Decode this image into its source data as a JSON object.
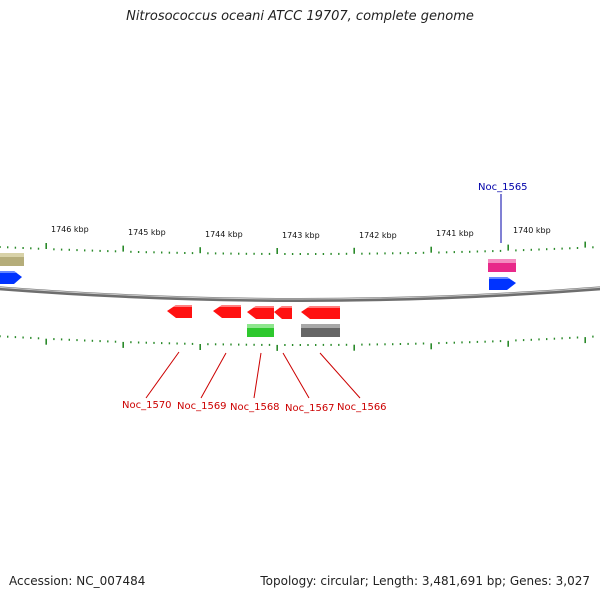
{
  "title": "Nitrosococcus oceani ATCC 19707, complete genome",
  "footer": {
    "accession": "Accession: NC_007484",
    "summary": "Topology: circular; Length: 3,481,691 bp; Genes: 3,027"
  },
  "scale_labels": [
    "1746 kbp",
    "1745 kbp",
    "1744 kbp",
    "1743 kbp",
    "1742 kbp",
    "1741 kbp",
    "1740 kbp"
  ],
  "genes_top": [
    {
      "label": "Noc_1565",
      "color": "#0000aa"
    }
  ],
  "genes_bottom": [
    {
      "label": "Noc_1570",
      "color": "#cc0000"
    },
    {
      "label": "Noc_1569",
      "color": "#cc0000"
    },
    {
      "label": "Noc_1568",
      "color": "#cc0000"
    },
    {
      "label": "Noc_1567",
      "color": "#cc0000"
    },
    {
      "label": "Noc_1566",
      "color": "#cc0000"
    }
  ],
  "colors": {
    "backbone": "#777777",
    "ticks": "#2a8a2a",
    "forward_gene": "#0033ff",
    "reverse_gene": "#ff1111",
    "pink_feature": "#e8298a",
    "green_feature": "#2ec82e",
    "gray_feature": "#666666",
    "khaki_feature": "#b5ad7a"
  }
}
